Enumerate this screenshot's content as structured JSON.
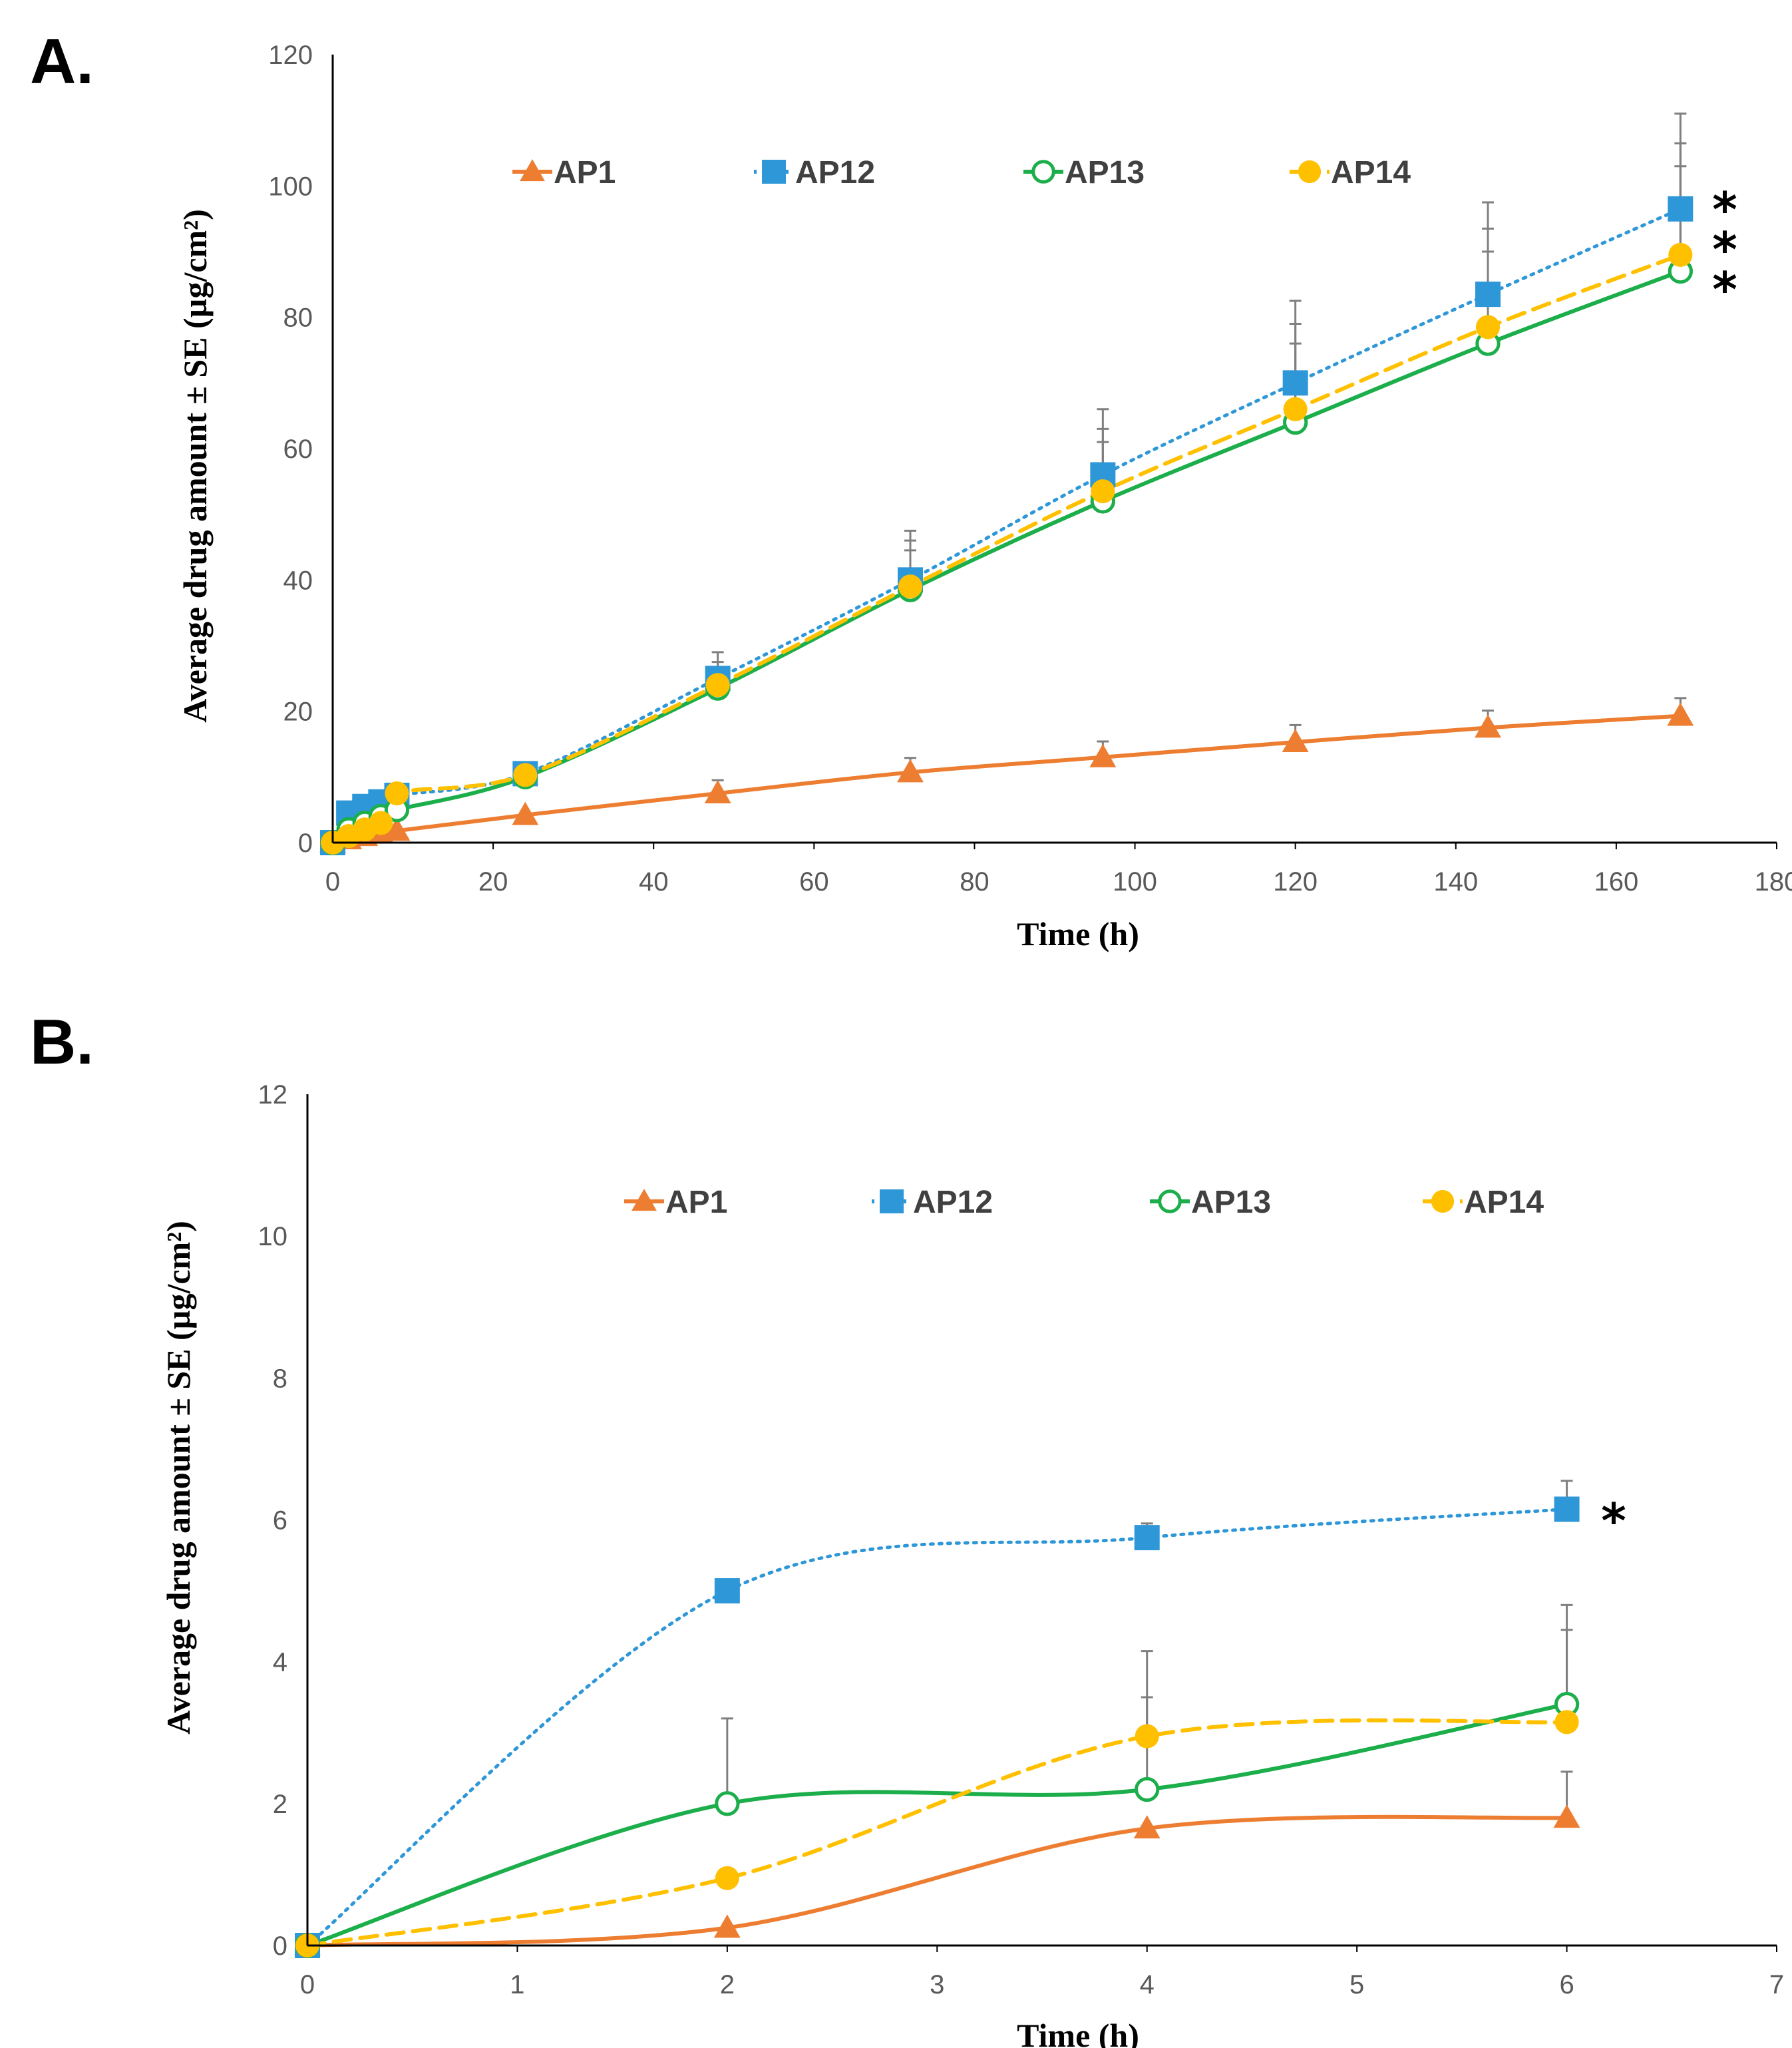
{
  "colors": {
    "AP1": "#ED7D31",
    "AP12": "#2E97D8",
    "AP13": "#1BAE4A",
    "AP14": "#FFC000",
    "axis": "#000000",
    "error_bar": "#7F7F7F"
  },
  "chart_data": [
    {
      "panel": "A.",
      "type": "line",
      "xlabel": "Time (h)",
      "ylabel": "Average drug amount ± SE (µg/cm²)",
      "xlim": [
        0,
        180
      ],
      "ylim": [
        0,
        120
      ],
      "xticks": [
        "0",
        "20",
        "40",
        "60",
        "80",
        "100",
        "120",
        "140",
        "160",
        "180"
      ],
      "yticks": [
        "0",
        "20",
        "40",
        "60",
        "80",
        "100",
        "120"
      ],
      "legend": [
        "AP1",
        "AP12",
        "AP13",
        "AP14"
      ],
      "legend_position": "top",
      "series": [
        {
          "name": "AP1",
          "marker": "triangle",
          "style": "solid",
          "x": [
            0,
            2,
            4,
            6,
            8,
            24,
            48,
            72,
            96,
            120,
            144,
            168
          ],
          "y": [
            0,
            0.5,
            1.0,
            1.4,
            1.8,
            4.2,
            7.5,
            10.7,
            13.0,
            15.3,
            17.5,
            19.3
          ],
          "err": [
            0,
            0,
            0,
            0,
            0,
            0,
            2.0,
            2.2,
            2.4,
            2.6,
            2.6,
            2.7
          ]
        },
        {
          "name": "AP12",
          "marker": "square",
          "style": "dotted",
          "x": [
            0,
            2,
            4,
            6,
            8,
            24,
            48,
            72,
            96,
            120,
            144,
            168
          ],
          "y": [
            0,
            4.5,
            5.5,
            6.2,
            7.2,
            10.5,
            25.0,
            40.0,
            56.0,
            70.0,
            83.5,
            96.5
          ],
          "err": [
            0,
            0,
            0,
            0,
            0,
            0,
            4.0,
            7.5,
            10.0,
            12.5,
            14.0,
            14.5
          ]
        },
        {
          "name": "AP13",
          "marker": "open-circle",
          "style": "solid",
          "x": [
            0,
            2,
            4,
            6,
            8,
            24,
            48,
            72,
            96,
            120,
            144,
            168
          ],
          "y": [
            0,
            2.0,
            3.0,
            4.0,
            5.0,
            10.0,
            23.5,
            38.5,
            52.0,
            64.0,
            76.0,
            87.0
          ],
          "err": [
            0,
            0,
            0,
            0,
            0,
            0,
            3.0,
            6.0,
            9.0,
            12.0,
            14.0,
            16.0
          ]
        },
        {
          "name": "AP14",
          "marker": "circle",
          "style": "dashed",
          "x": [
            0,
            2,
            4,
            6,
            8,
            24,
            48,
            72,
            96,
            120,
            144,
            168
          ],
          "y": [
            0,
            1.0,
            2.0,
            3.0,
            7.5,
            10.3,
            24.0,
            39.0,
            53.5,
            66.0,
            78.5,
            89.5
          ],
          "err": [
            0,
            0,
            0,
            0,
            0,
            0,
            3.5,
            7.0,
            9.5,
            13.0,
            15.0,
            17.0
          ]
        }
      ],
      "annotations": [
        "*",
        "*",
        "*"
      ]
    },
    {
      "panel": "B.",
      "type": "line",
      "xlabel": "Time (h)",
      "ylabel": "Average drug amount ± SE (µg/cm²)",
      "xlim": [
        0,
        7
      ],
      "ylim": [
        0,
        12
      ],
      "xticks": [
        "0",
        "1",
        "2",
        "3",
        "4",
        "5",
        "6",
        "7"
      ],
      "yticks": [
        "0",
        "2",
        "4",
        "6",
        "8",
        "10",
        "12"
      ],
      "legend": [
        "AP1",
        "AP12",
        "AP13",
        "AP14"
      ],
      "legend_position": "top",
      "series": [
        {
          "name": "AP1",
          "marker": "triangle",
          "style": "solid",
          "x": [
            0,
            2,
            4,
            6
          ],
          "y": [
            0,
            0.25,
            1.65,
            1.8
          ],
          "err": [
            0,
            0,
            0,
            0.65
          ]
        },
        {
          "name": "AP12",
          "marker": "square",
          "style": "dotted",
          "x": [
            0,
            2,
            4,
            6
          ],
          "y": [
            0,
            5.0,
            5.75,
            6.15
          ],
          "err": [
            0,
            0,
            0.2,
            0.4
          ]
        },
        {
          "name": "AP13",
          "marker": "open-circle",
          "style": "solid",
          "x": [
            0,
            2,
            4,
            6
          ],
          "y": [
            0,
            2.0,
            2.2,
            3.4
          ],
          "err": [
            0,
            1.2,
            1.3,
            1.4
          ]
        },
        {
          "name": "AP14",
          "marker": "circle",
          "style": "dashed",
          "x": [
            0,
            2,
            4,
            6
          ],
          "y": [
            0,
            0.95,
            2.95,
            3.15
          ],
          "err": [
            0,
            0,
            1.2,
            1.3
          ]
        }
      ],
      "annotations": [
        "*"
      ]
    }
  ]
}
